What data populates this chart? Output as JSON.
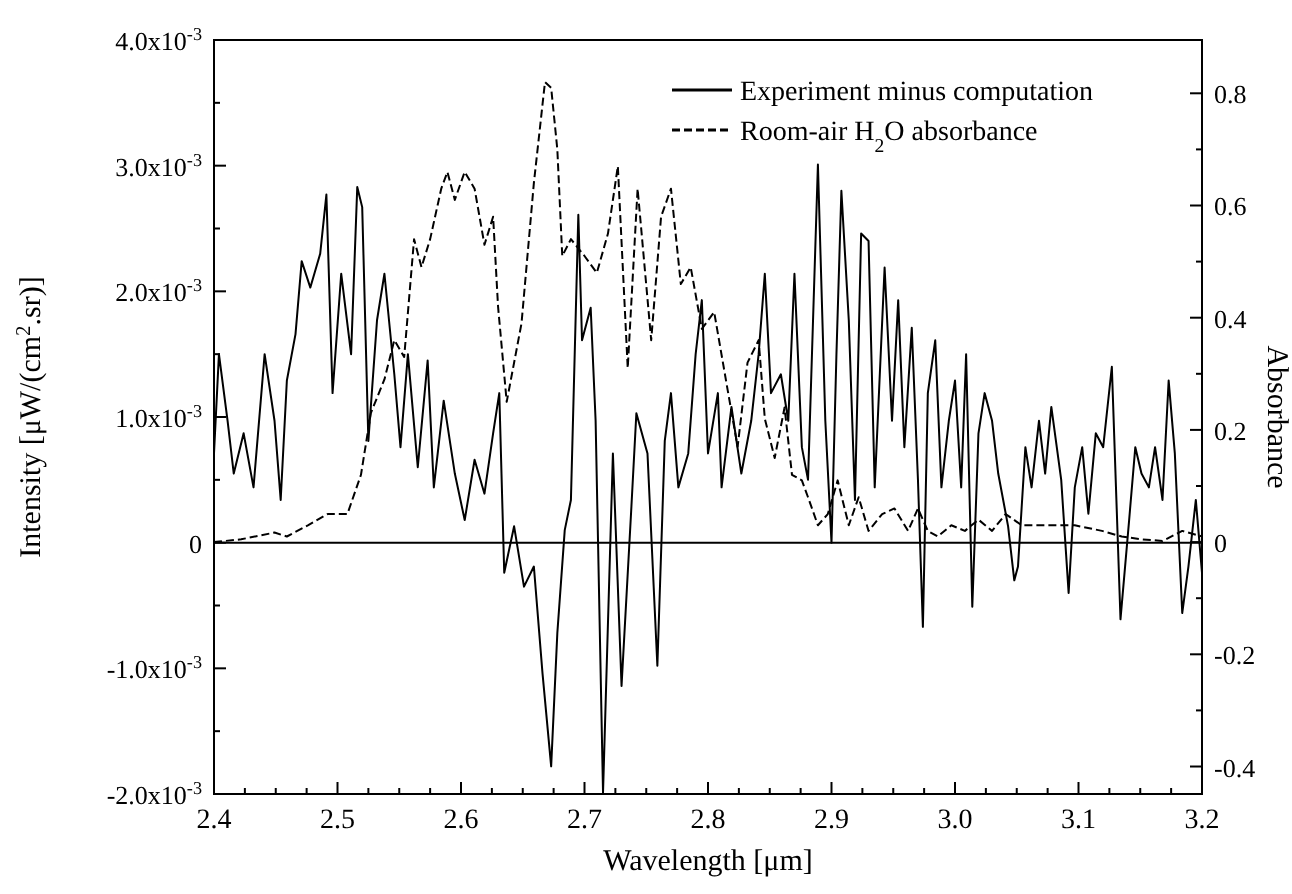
{
  "chart_data": {
    "type": "line",
    "xlabel": "Wavelength [μm]",
    "ylabel": "Intensity [μW/(cm$^{2}$.sr)]",
    "y2label": "Absorbance",
    "xlim": [
      2.4,
      3.2
    ],
    "xticks": [
      2.4,
      {
        "value": 2.425,
        "label": null
      },
      {
        "value": 2.45,
        "label": null
      },
      {
        "value": 2.475,
        "label": null
      },
      2.5,
      {
        "value": 2.525,
        "label": null
      },
      {
        "value": 2.55,
        "label": null
      },
      {
        "value": 2.575,
        "label": null
      },
      2.6,
      {
        "value": 2.625,
        "label": null
      },
      {
        "value": 2.65,
        "label": null
      },
      {
        "value": 2.675,
        "label": null
      },
      2.7,
      {
        "value": 2.725,
        "label": null
      },
      {
        "value": 2.75,
        "label": null
      },
      {
        "value": 2.775,
        "label": null
      },
      2.8,
      {
        "value": 2.825,
        "label": null
      },
      {
        "value": 2.85,
        "label": null
      },
      {
        "value": 2.875,
        "label": null
      },
      2.9,
      {
        "value": 2.925,
        "label": null
      },
      {
        "value": 2.95,
        "label": null
      },
      {
        "value": 2.975,
        "label": null
      },
      {
        "value": 3.0,
        "label": "3.0"
      },
      {
        "value": 3.025,
        "label": null
      },
      {
        "value": 3.05,
        "label": null
      },
      {
        "value": 3.075,
        "label": null
      },
      3.1,
      {
        "value": 3.125,
        "label": null
      },
      {
        "value": 3.15,
        "label": null
      },
      {
        "value": 3.175,
        "label": null
      },
      3.2
    ],
    "ylim": [
      -0.002,
      0.004
    ],
    "yticks": [
      {
        "value": -0.002,
        "label": "-2.0x10$^{-3}$"
      },
      {
        "value": -0.0015,
        "label": null
      },
      {
        "value": -0.001,
        "label": "-1.0x10$^{-3}$"
      },
      {
        "value": -0.0005,
        "label": null
      },
      0,
      {
        "value": 0.0005,
        "label": null
      },
      {
        "value": 0.001,
        "label": "1.0x10$^{-3}$"
      },
      {
        "value": 0.0015,
        "label": null
      },
      {
        "value": 0.002,
        "label": "2.0x10$^{-3}$"
      },
      {
        "value": 0.0025,
        "label": null
      },
      {
        "value": 0.003,
        "label": "3.0x10$^{-3}$"
      },
      {
        "value": 0.0035,
        "label": null
      },
      {
        "value": 0.004,
        "label": "4.0x10$^{-3}$"
      }
    ],
    "y2lim": [
      -0.449,
      0.895
    ],
    "y2ticks": [
      -0.4,
      {
        "value": -0.3,
        "label": null
      },
      -0.2,
      {
        "value": -0.1,
        "label": null
      },
      0,
      {
        "value": 0.1,
        "label": null
      },
      0.2,
      {
        "value": 0.3,
        "label": null
      },
      0.4,
      {
        "value": 0.5,
        "label": null
      },
      0.6,
      {
        "value": 0.7,
        "label": null
      },
      0.8
    ],
    "grid": false,
    "legend": "top right",
    "ref_lines": [
      {
        "axis": "y",
        "value": 0,
        "color": "#000000",
        "line_style": "solid"
      }
    ],
    "series": [
      {
        "name": "Experiment minus computation",
        "color": "#000000",
        "line_style": "solid",
        "x": [
          2.4,
          2.404,
          2.411,
          2.416,
          2.424,
          2.432,
          2.441,
          2.449,
          2.454,
          2.459,
          2.466,
          2.471,
          2.478,
          2.486,
          2.491,
          2.496,
          2.503,
          2.511,
          2.516,
          2.52,
          2.525,
          2.532,
          2.538,
          2.546,
          2.551,
          2.557,
          2.565,
          2.573,
          2.578,
          2.586,
          2.595,
          2.603,
          2.611,
          2.619,
          2.626,
          2.631,
          2.635,
          2.643,
          2.651,
          2.659,
          2.666,
          2.673,
          2.678,
          2.684,
          2.689,
          2.695,
          2.698,
          2.705,
          2.709,
          2.715,
          2.723,
          2.73,
          2.738,
          2.742,
          2.751,
          2.759,
          2.765,
          2.77,
          2.776,
          2.784,
          2.79,
          2.795,
          2.8,
          2.808,
          2.811,
          2.819,
          2.827,
          2.835,
          2.841,
          2.846,
          2.851,
          2.859,
          2.865,
          2.87,
          2.876,
          2.881,
          2.889,
          2.895,
          2.9,
          2.904,
          2.908,
          2.914,
          2.919,
          2.924,
          2.93,
          2.935,
          2.943,
          2.949,
          2.954,
          2.959,
          2.965,
          2.97,
          2.974,
          2.978,
          2.984,
          2.989,
          2.995,
          3.0,
          3.005,
          3.009,
          3.014,
          3.019,
          3.024,
          3.03,
          3.035,
          3.043,
          3.048,
          3.051,
          3.057,
          3.062,
          3.068,
          3.073,
          3.078,
          3.086,
          3.092,
          3.097,
          3.103,
          3.108,
          3.114,
          3.12,
          3.127,
          3.134,
          3.141,
          3.146,
          3.151,
          3.157,
          3.162,
          3.168,
          3.173,
          3.178,
          3.184,
          3.189,
          3.195,
          3.2
        ],
        "values": [
          0.00071,
          0.0015,
          0.00097,
          0.00055,
          0.00087,
          0.00044,
          0.0015,
          0.00097,
          0.00034,
          0.00129,
          0.00166,
          0.00224,
          0.00203,
          0.0023,
          0.00277,
          0.00119,
          0.00214,
          0.0015,
          0.00283,
          0.00267,
          0.00081,
          0.00177,
          0.00214,
          0.00134,
          0.00076,
          0.0015,
          0.0006,
          0.00145,
          0.00044,
          0.00113,
          0.00055,
          0.00018,
          0.00066,
          0.00039,
          0.00087,
          0.00119,
          -0.00024,
          0.00013,
          -0.00035,
          -0.00019,
          -0.00104,
          -0.00178,
          -0.00072,
          0.0001,
          0.00034,
          0.00261,
          0.00161,
          0.00187,
          0.00097,
          -0.00199,
          0.00071,
          -0.00114,
          0.00029,
          0.00103,
          0.00071,
          -0.00098,
          0.00081,
          0.00119,
          0.00044,
          0.00071,
          0.0015,
          0.00193,
          0.00071,
          0.00119,
          0.00044,
          0.00108,
          0.00055,
          0.00097,
          0.0015,
          0.00214,
          0.00119,
          0.00134,
          0.00097,
          0.00214,
          0.00076,
          0.0005,
          0.00301,
          0.00097,
          0.0,
          0.0015,
          0.0028,
          0.00177,
          0.00034,
          0.00246,
          0.0024,
          0.00044,
          0.00219,
          0.00097,
          0.00193,
          0.00076,
          0.00171,
          0.0005,
          -0.00067,
          0.00119,
          0.00161,
          0.00044,
          0.00097,
          0.00129,
          0.00044,
          0.0015,
          -0.00051,
          0.00087,
          0.00119,
          0.00097,
          0.00055,
          0.00013,
          -0.0003,
          -0.00019,
          0.00076,
          0.00044,
          0.00097,
          0.00055,
          0.00108,
          0.0005,
          -0.0004,
          0.00044,
          0.00076,
          0.00023,
          0.00087,
          0.00076,
          0.0014,
          -0.00061,
          0.00018,
          0.00076,
          0.00055,
          0.00044,
          0.00076,
          0.00034,
          0.00129,
          0.00071,
          -0.00056,
          -0.00019,
          0.00034,
          -0.00024
        ]
      },
      {
        "name": "Room-air H$_{2}$O absorbance",
        "color": "#000000",
        "line_style": "dashed",
        "axis": "y2",
        "x": [
          2.4,
          2.422,
          2.449,
          2.459,
          2.476,
          2.492,
          2.508,
          2.519,
          2.527,
          2.538,
          2.546,
          2.554,
          2.562,
          2.568,
          2.575,
          2.584,
          2.589,
          2.595,
          2.603,
          2.611,
          2.619,
          2.626,
          2.63,
          2.637,
          2.649,
          2.659,
          2.668,
          2.673,
          2.678,
          2.682,
          2.689,
          2.7,
          2.71,
          2.719,
          2.727,
          2.735,
          2.743,
          2.754,
          2.762,
          2.77,
          2.778,
          2.786,
          2.795,
          2.805,
          2.816,
          2.824,
          2.832,
          2.841,
          2.846,
          2.854,
          2.862,
          2.868,
          2.876,
          2.881,
          2.889,
          2.897,
          2.905,
          2.914,
          2.922,
          2.93,
          2.941,
          2.951,
          2.962,
          2.97,
          2.978,
          2.986,
          2.997,
          3.008,
          3.019,
          3.03,
          3.041,
          3.054,
          3.076,
          3.097,
          3.119,
          3.135,
          3.151,
          3.168,
          3.184,
          3.2
        ],
        "values": [
          0.0,
          0.005,
          0.017,
          0.01,
          0.03,
          0.05,
          0.05,
          0.12,
          0.23,
          0.29,
          0.36,
          0.33,
          0.54,
          0.49,
          0.54,
          0.63,
          0.66,
          0.61,
          0.66,
          0.63,
          0.53,
          0.58,
          0.42,
          0.25,
          0.39,
          0.64,
          0.82,
          0.81,
          0.7,
          0.51,
          0.54,
          0.51,
          0.48,
          0.55,
          0.67,
          0.31,
          0.63,
          0.36,
          0.58,
          0.63,
          0.46,
          0.49,
          0.38,
          0.41,
          0.27,
          0.17,
          0.32,
          0.36,
          0.22,
          0.15,
          0.24,
          0.12,
          0.11,
          0.08,
          0.03,
          0.05,
          0.11,
          0.03,
          0.08,
          0.02,
          0.05,
          0.06,
          0.02,
          0.06,
          0.02,
          0.01,
          0.03,
          0.02,
          0.04,
          0.02,
          0.05,
          0.03,
          0.03,
          0.03,
          0.02,
          0.01,
          0.005,
          0.002,
          0.02,
          0.01
        ]
      }
    ]
  }
}
